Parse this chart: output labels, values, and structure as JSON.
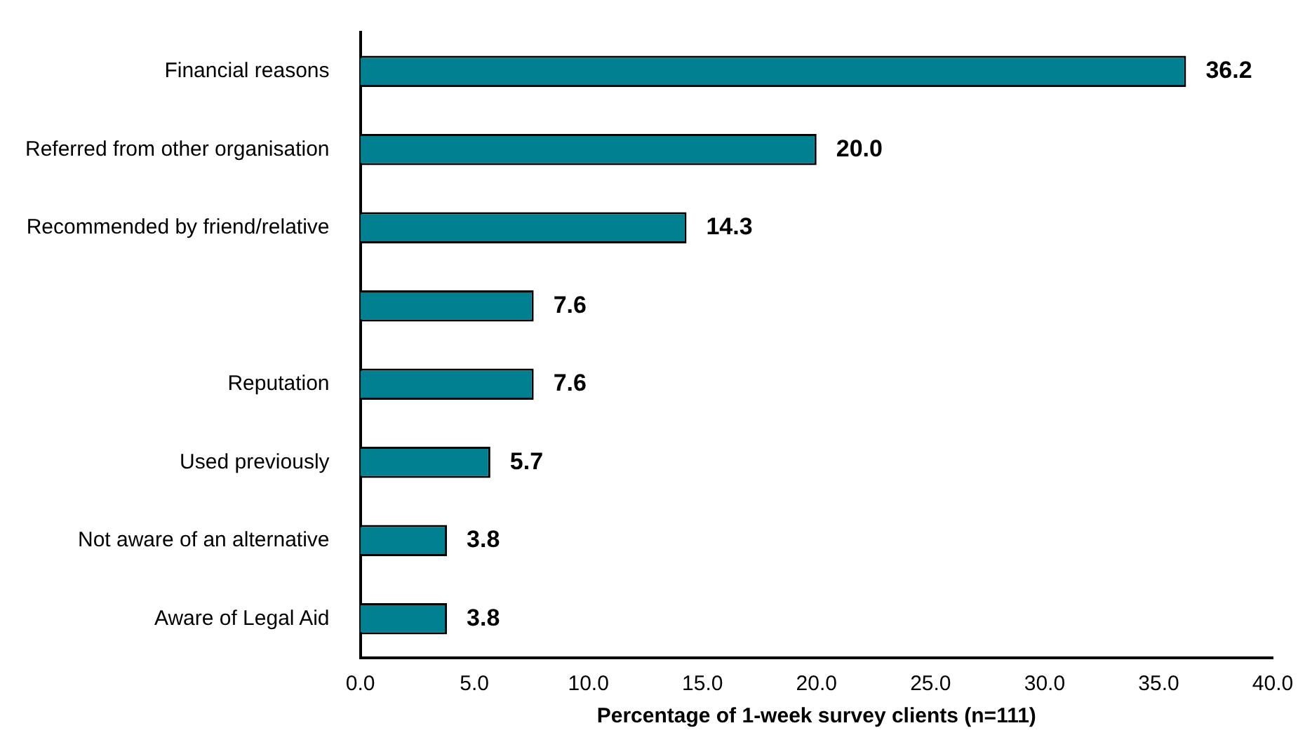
{
  "chart_data": {
    "type": "bar",
    "orientation": "horizontal",
    "xlabel": "Percentage of 1-week survey clients (n=111)",
    "categories": [
      "Financial reasons",
      "Referred from other organisation",
      "Recommended by friend/relative",
      null,
      "Reputation",
      "Used previously",
      "Not aware of an alternative",
      "Aware of Legal Aid"
    ],
    "values": [
      36.2,
      20.0,
      14.3,
      7.6,
      7.6,
      5.7,
      3.8,
      3.8
    ],
    "value_labels": [
      "36.2",
      "20.0",
      "14.3",
      "7.6",
      "7.6",
      "5.7",
      "3.8",
      "3.8"
    ],
    "color": "#008090",
    "xlim": [
      0,
      40
    ],
    "xticks": [
      {
        "value": 0,
        "label": "0.0"
      },
      {
        "value": 5,
        "label": "5.0"
      },
      {
        "value": 10,
        "label": "10.0"
      },
      {
        "value": 15,
        "label": "15.0"
      },
      {
        "value": 20,
        "label": "20.0"
      },
      {
        "value": 25,
        "label": "25.0"
      },
      {
        "value": 30,
        "label": "30.0"
      },
      {
        "value": 35,
        "label": "35.0"
      },
      {
        "value": 40,
        "label": "40.0"
      }
    ],
    "grid": false,
    "legend": false
  }
}
